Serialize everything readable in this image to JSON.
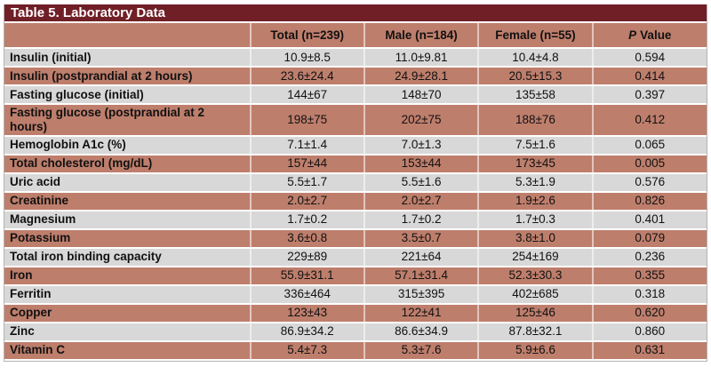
{
  "table": {
    "title": "Table 5. Laboratory Data",
    "header": {
      "total": "Total (n=239)",
      "male": "Male (n=184)",
      "female": "Female (n=55)",
      "p_symbol": "P",
      "p_label": "Value"
    },
    "rows": [
      {
        "label": "Insulin (initial)",
        "total": "10.9±8.5",
        "male": "11.0±9.81",
        "female": "10.4±4.8",
        "p": "0.594"
      },
      {
        "label": "Insulin (postprandial at 2 hours)",
        "total": "23.6±24.4",
        "male": "24.9±28.1",
        "female": "20.5±15.3",
        "p": "0.414"
      },
      {
        "label": "Fasting glucose (initial)",
        "total": "144±67",
        "male": "148±70",
        "female": "135±58",
        "p": "0.397"
      },
      {
        "label": "Fasting glucose (postprandial at 2 hours)",
        "total": "198±75",
        "male": "202±75",
        "female": "188±76",
        "p": "0.412"
      },
      {
        "label": "Hemoglobin A1c (%)",
        "total": "7.1±1.4",
        "male": "7.0±1.3",
        "female": "7.5±1.6",
        "p": "0.065"
      },
      {
        "label": "Total cholesterol (mg/dL)",
        "total": "157±44",
        "male": "153±44",
        "female": "173±45",
        "p": "0.005"
      },
      {
        "label": "Uric acid",
        "total": "5.5±1.7",
        "male": "5.5±1.6",
        "female": "5.3±1.9",
        "p": "0.576"
      },
      {
        "label": "Creatinine",
        "total": "2.0±2.7",
        "male": "2.0±2.7",
        "female": "1.9±2.6",
        "p": "0.826"
      },
      {
        "label": "Magnesium",
        "total": "1.7±0.2",
        "male": "1.7±0.2",
        "female": "1.7±0.3",
        "p": "0.401"
      },
      {
        "label": "Potassium",
        "total": "3.6±0.8",
        "male": "3.5±0.7",
        "female": "3.8±1.0",
        "p": "0.079"
      },
      {
        "label": "Total iron binding capacity",
        "total": "229±89",
        "male": "221±64",
        "female": "254±169",
        "p": "0.236"
      },
      {
        "label": "Iron",
        "total": "55.9±31.1",
        "male": "57.1±31.4",
        "female": "52.3±30.3",
        "p": "0.355"
      },
      {
        "label": "Ferritin",
        "total": "336±464",
        "male": "315±395",
        "female": "402±685",
        "p": "0.318"
      },
      {
        "label": "Copper",
        "total": "123±43",
        "male": "122±41",
        "female": "125±46",
        "p": "0.620"
      },
      {
        "label": "Zinc",
        "total": "86.9±34.2",
        "male": "86.6±34.9",
        "female": "87.8±32.1",
        "p": "0.860"
      },
      {
        "label": "Vitamin C",
        "total": "5.4±7.3",
        "male": "5.3±7.6",
        "female": "5.9±6.6",
        "p": "0.631"
      }
    ]
  },
  "colors": {
    "title_bar_bg": "#701F27",
    "title_text": "#FFFFFF",
    "row_pink": "#BE7E6C",
    "row_gray": "#D8D8D8",
    "text": "#111111",
    "outer_border": "#B3B3B3"
  }
}
